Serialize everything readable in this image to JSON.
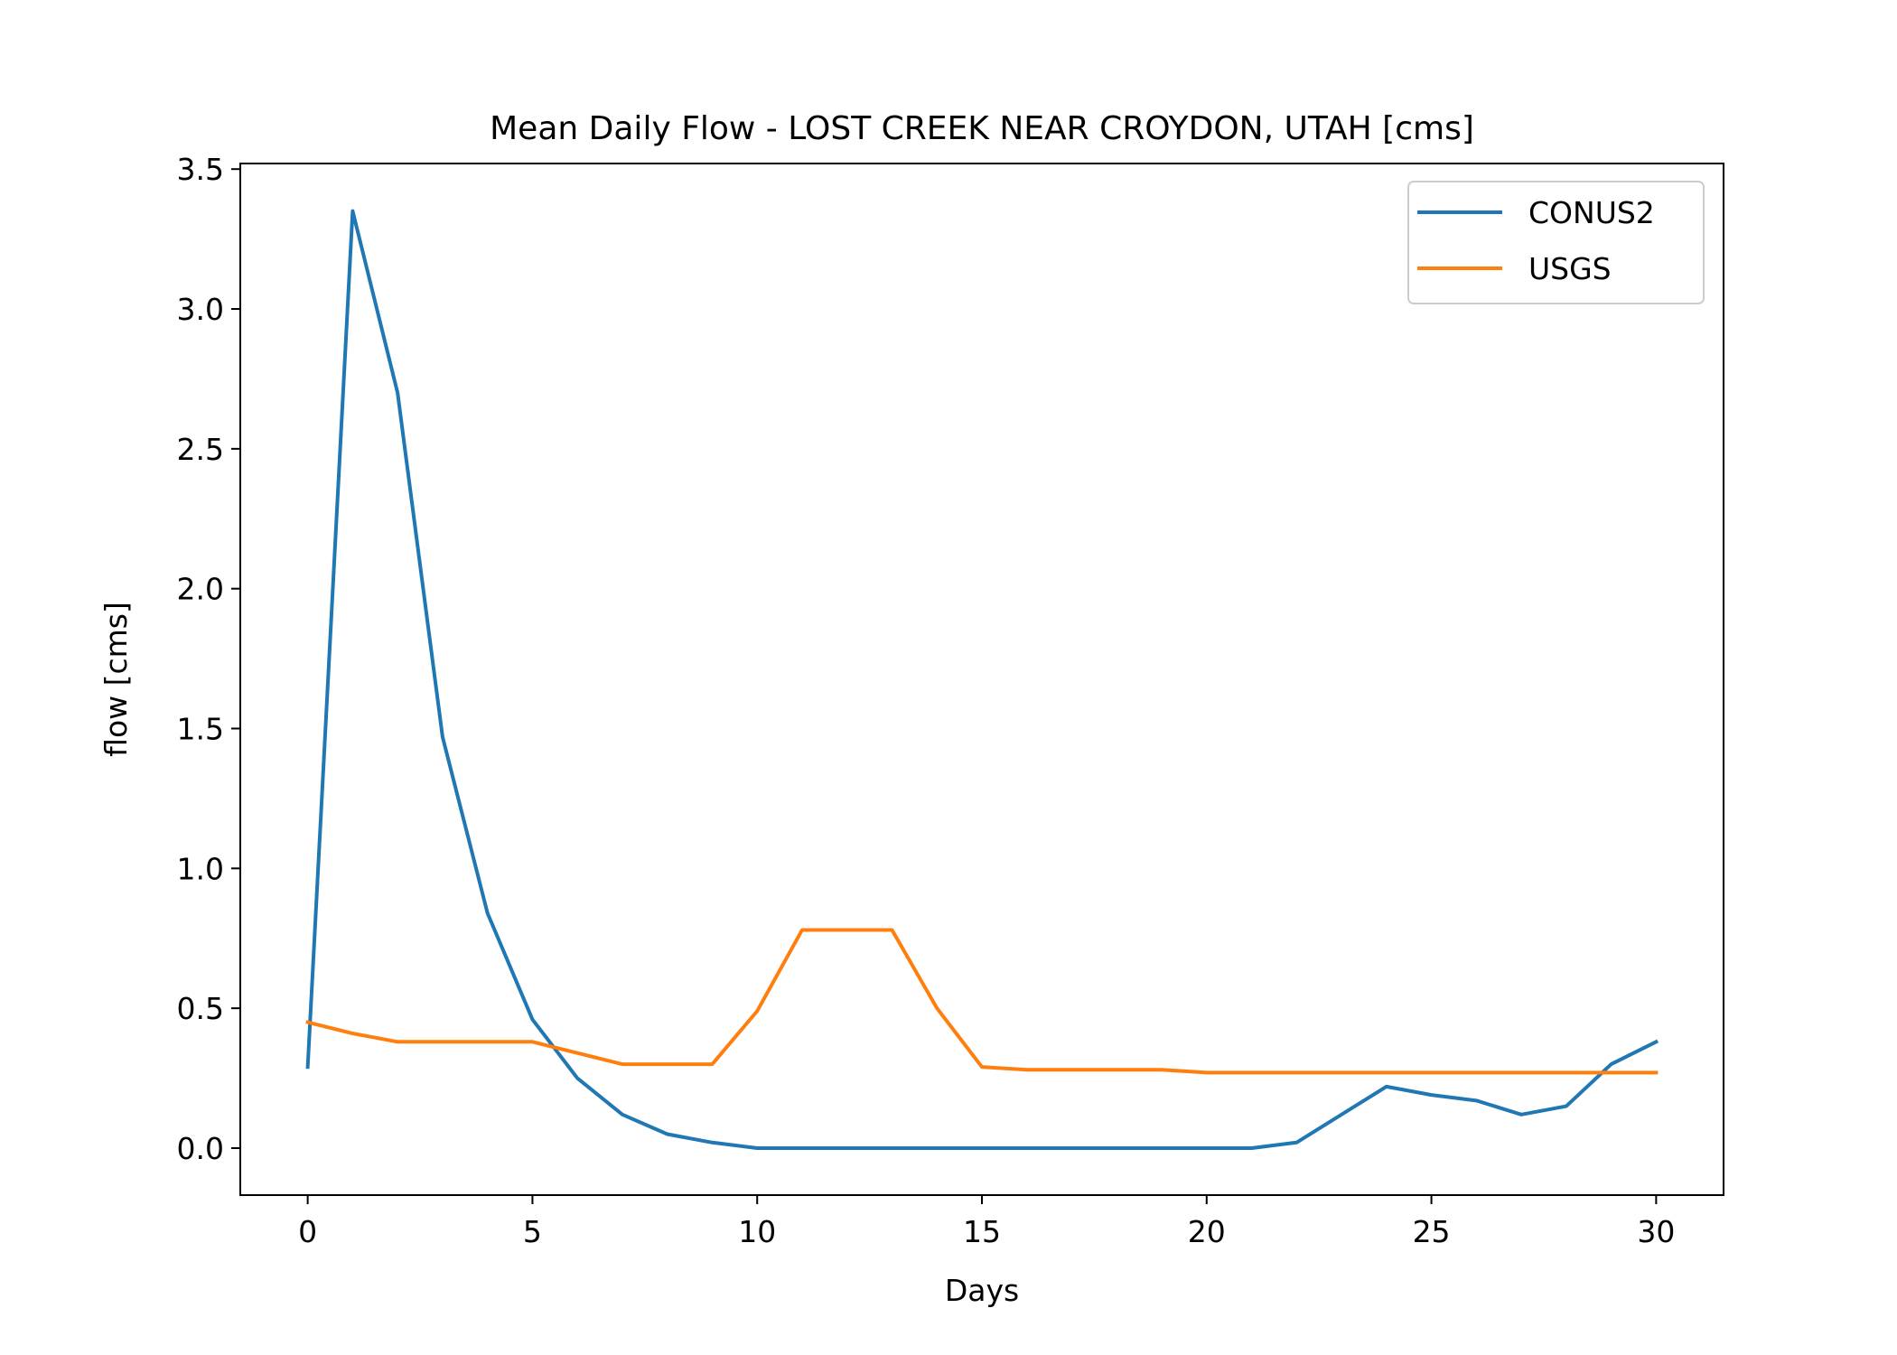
{
  "chart_data": {
    "type": "line",
    "title": "Mean Daily Flow - LOST CREEK NEAR CROYDON, UTAH [cms]",
    "xlabel": "Days",
    "ylabel": "flow [cms]",
    "xlim": [
      -1.5,
      31.5
    ],
    "ylim": [
      -0.168,
      3.52
    ],
    "xticks": [
      0,
      5,
      10,
      15,
      20,
      25,
      30
    ],
    "xtick_labels": [
      "0",
      "5",
      "10",
      "15",
      "20",
      "25",
      "30"
    ],
    "yticks": [
      0.0,
      0.5,
      1.0,
      1.5,
      2.0,
      2.5,
      3.0,
      3.5
    ],
    "ytick_labels": [
      "0.0",
      "0.5",
      "1.0",
      "1.5",
      "2.0",
      "2.5",
      "3.0",
      "3.5"
    ],
    "grid": false,
    "legend": "top-right",
    "x": [
      0,
      1,
      2,
      3,
      4,
      5,
      6,
      7,
      8,
      9,
      10,
      11,
      12,
      13,
      14,
      15,
      16,
      17,
      18,
      19,
      20,
      21,
      22,
      23,
      24,
      25,
      26,
      27,
      28,
      29,
      30
    ],
    "series": [
      {
        "name": "CONUS2",
        "color": "#1f77b4",
        "values": [
          0.29,
          3.35,
          2.7,
          1.47,
          0.84,
          0.46,
          0.25,
          0.12,
          0.05,
          0.02,
          0.0,
          0.0,
          0.0,
          0.0,
          0.0,
          0.0,
          0.0,
          0.0,
          0.0,
          0.0,
          0.0,
          0.0,
          0.02,
          0.12,
          0.22,
          0.19,
          0.17,
          0.12,
          0.15,
          0.3,
          0.38
        ]
      },
      {
        "name": "USGS",
        "color": "#ff7f0e",
        "values": [
          0.45,
          0.41,
          0.38,
          0.38,
          0.38,
          0.38,
          0.34,
          0.3,
          0.3,
          0.3,
          0.49,
          0.78,
          0.78,
          0.78,
          0.5,
          0.29,
          0.28,
          0.28,
          0.28,
          0.28,
          0.27,
          0.27,
          0.27,
          0.27,
          0.27,
          0.27,
          0.27,
          0.27,
          0.27,
          0.27,
          0.27
        ]
      }
    ]
  }
}
